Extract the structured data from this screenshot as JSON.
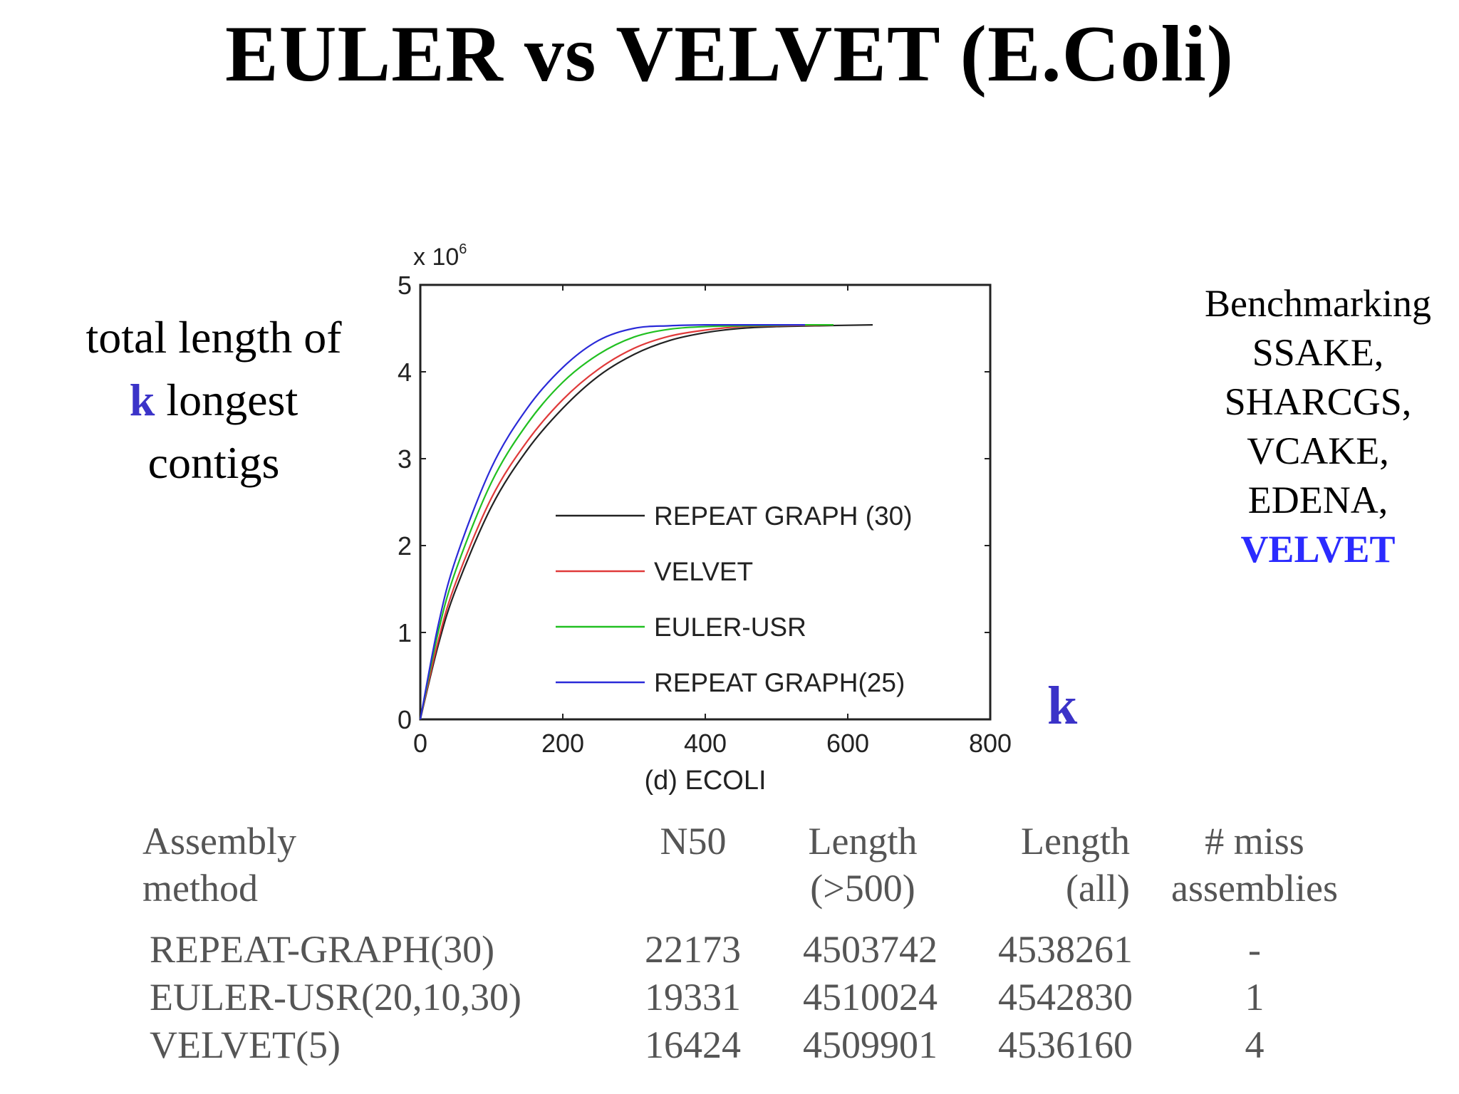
{
  "slide": {
    "title": "EULER vs VELVET (E.Coli)",
    "ylabel_line1": "total length of",
    "ylabel_k": "k",
    "ylabel_line2": " longest",
    "ylabel_line3": "contigs",
    "k_axis": "k",
    "sidebar": [
      "Benchmarking",
      "SSAKE,",
      "SHARCGS,",
      "VCAKE,",
      "EDENA,",
      "VELVET"
    ]
  },
  "chart_data": {
    "type": "line",
    "xlabel": "(d) ECOLI",
    "y_exponent": "x 10",
    "y_exponent_power": "6",
    "xlim": [
      0,
      800
    ],
    "ylim": [
      0,
      5
    ],
    "xticks": [
      "0",
      "200",
      "400",
      "600",
      "800"
    ],
    "yticks": [
      "0",
      "1",
      "2",
      "3",
      "4",
      "5"
    ],
    "legend_position": "bottom-right",
    "series": [
      {
        "name": "REPEAT GRAPH (30)",
        "color": "#222222",
        "x": [
          0,
          25,
          50,
          100,
          150,
          200,
          250,
          300,
          350,
          400,
          450,
          500,
          560,
          635
        ],
        "y": [
          0,
          0.85,
          1.5,
          2.45,
          3.1,
          3.58,
          3.95,
          4.2,
          4.36,
          4.45,
          4.5,
          4.52,
          4.53,
          4.54
        ]
      },
      {
        "name": "VELVET",
        "color": "#e03a3a",
        "x": [
          0,
          25,
          50,
          100,
          150,
          200,
          250,
          300,
          350,
          400,
          450,
          500,
          540,
          580
        ],
        "y": [
          0,
          0.9,
          1.58,
          2.55,
          3.2,
          3.68,
          4.03,
          4.27,
          4.41,
          4.48,
          4.52,
          4.53,
          4.535,
          4.54
        ]
      },
      {
        "name": "EULER-USR",
        "color": "#21c021",
        "x": [
          0,
          25,
          50,
          100,
          150,
          200,
          250,
          300,
          350,
          400,
          450,
          500,
          540,
          580
        ],
        "y": [
          0,
          1.0,
          1.72,
          2.73,
          3.4,
          3.88,
          4.2,
          4.4,
          4.49,
          4.52,
          4.53,
          4.535,
          4.54,
          4.54
        ]
      },
      {
        "name": "REPEAT GRAPH(25)",
        "color": "#2a2ad8",
        "x": [
          0,
          25,
          50,
          100,
          150,
          200,
          250,
          300,
          350,
          400,
          450,
          500,
          540
        ],
        "y": [
          0,
          1.08,
          1.85,
          2.9,
          3.58,
          4.05,
          4.36,
          4.5,
          4.53,
          4.54,
          4.54,
          4.54,
          4.54
        ]
      }
    ]
  },
  "table": {
    "headers": [
      {
        "line1": "Assembly",
        "line2": "method"
      },
      {
        "line1": "N50",
        "line2": ""
      },
      {
        "line1": "Length",
        "line2": "(>500)"
      },
      {
        "line1": "Length",
        "line2": "(all)"
      },
      {
        "line1": "# miss",
        "line2": "assemblies"
      }
    ],
    "rows": [
      {
        "method": "REPEAT-GRAPH(30)",
        "n50": "22173",
        "len500": "4503742",
        "lenall": "4538261",
        "miss": "-"
      },
      {
        "method": "EULER-USR(20,10,30)",
        "n50": "19331",
        "len500": "4510024",
        "lenall": "4542830",
        "miss": "1"
      },
      {
        "method": "VELVET(5)",
        "n50": "16424",
        "len500": "4509901",
        "lenall": "4536160",
        "miss": "4"
      }
    ]
  }
}
